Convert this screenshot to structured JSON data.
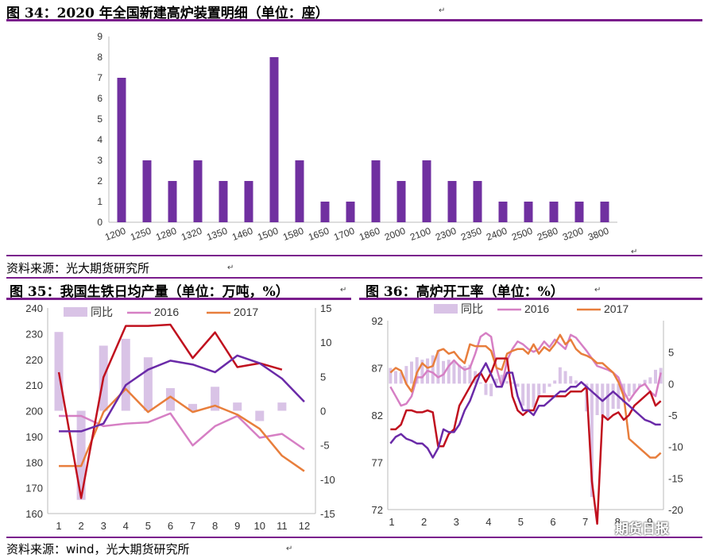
{
  "chart34": {
    "title": "图 34：2020 年全国新建高炉装置明细（单位：座）",
    "source": "资料来源：光大期货研究所"
  },
  "chart35": {
    "title": "图 35：我国生铁日均产量（单位：万吨，%）"
  },
  "chart36": {
    "title": "图 36：高炉开工率（单位：%）"
  },
  "bottom_source": "资料来源：wind，光大期货研究所",
  "watermark": "期货日报",
  "colors": {
    "purple_bar": "#7030a0",
    "rule": "#7a1d8c",
    "yoy_bar": "#d9c3e6",
    "pink": "#d67fc4",
    "orange": "#e87e3c",
    "red": "#c0101e",
    "violet": "#6a2aa8"
  },
  "chart_data": [
    {
      "type": "bar",
      "categories": [
        "1200",
        "1250",
        "1280",
        "1320",
        "1350",
        "1460",
        "1500",
        "1580",
        "1650",
        "1700",
        "1860",
        "2000",
        "2100",
        "2300",
        "2350",
        "2400",
        "2500",
        "2580",
        "3200",
        "3800"
      ],
      "values": [
        7,
        3,
        2,
        3,
        2,
        2,
        8,
        3,
        1,
        1,
        3,
        2,
        3,
        2,
        2,
        1,
        1,
        1,
        1,
        1
      ],
      "ylim": [
        0,
        9
      ],
      "yticks": [
        0,
        1,
        2,
        3,
        4,
        5,
        6,
        7,
        8,
        9
      ],
      "grid": false
    },
    {
      "type": "line",
      "x": [
        1,
        2,
        3,
        4,
        5,
        6,
        7,
        8,
        9,
        10,
        11,
        12
      ],
      "ylim_left": [
        160,
        240
      ],
      "yticks_left": [
        160,
        170,
        180,
        190,
        200,
        210,
        220,
        230,
        240
      ],
      "ylim_right": [
        -15,
        15
      ],
      "yticks_right": [
        -15,
        -10,
        -5,
        0,
        5,
        10,
        15
      ],
      "legend": [
        "同比",
        "2016",
        "2017"
      ],
      "yoy": {
        "name": "同比",
        "axis": "right",
        "values": [
          11.5,
          -13,
          9.5,
          10.5,
          7.8,
          3.3,
          1,
          3.5,
          1.2,
          -1.5,
          1.2,
          null
        ]
      },
      "series": [
        {
          "name": "2016",
          "axis": "left",
          "values": [
            198,
            198,
            194,
            195,
            195.5,
            199,
            186.5,
            194,
            198,
            189.5,
            191,
            185
          ]
        },
        {
          "name": "2017",
          "axis": "left",
          "values": [
            178.5,
            178.5,
            199.5,
            208.5,
            199.5,
            205.5,
            199.5,
            202,
            198.5,
            193,
            182.5,
            176.5
          ]
        },
        {
          "axis": "left",
          "color": "red",
          "values": [
            215,
            166,
            213,
            233,
            233,
            233.5,
            220.5,
            230.5,
            217,
            218.5,
            216,
            null
          ]
        },
        {
          "axis": "left",
          "color": "violet",
          "values": [
            192,
            192,
            195,
            210,
            216,
            219.5,
            218,
            215,
            221.5,
            218.5,
            212.5,
            203.5
          ]
        }
      ]
    },
    {
      "type": "line",
      "xticks": [
        1,
        2,
        3,
        4,
        5,
        6,
        7,
        8,
        9
      ],
      "n_weeks": 52,
      "ylim_left": [
        72,
        92
      ],
      "yticks_left": [
        72,
        77,
        82,
        87,
        92
      ],
      "ylim_right": [
        -20,
        10
      ],
      "yticks_right": [
        -20,
        -15,
        -10,
        -5,
        0,
        5
      ],
      "legend": [
        "同比",
        "2016",
        "2017"
      ],
      "yoy": {
        "name": "同比",
        "axis": "right",
        "values": [
          2.5,
          2,
          1.8,
          2.8,
          3.5,
          4.2,
          3.8,
          4,
          4.5,
          5.3,
          3.6,
          3.8,
          3.5,
          3,
          2.8,
          3,
          2,
          0.2,
          -1.8,
          -2,
          0.8,
          1.4,
          0.4,
          0.2,
          -0.5,
          -3.5,
          -4.5,
          -3.8,
          -2.2,
          -1.5,
          -0.5,
          0.5,
          2.6,
          2,
          1.2,
          0.5,
          0,
          -4.4,
          -18,
          -5,
          -5.5,
          -5.7,
          -4,
          -4,
          -3,
          -2,
          -1.5,
          -0.5,
          0.6,
          1,
          2.2,
          2.5
        ]
      },
      "series": [
        {
          "name": "2016",
          "axis": "left",
          "values": [
            85,
            84,
            83,
            83.2,
            84,
            86,
            86,
            86.7,
            86.5,
            86,
            86.3,
            87.2,
            87.8,
            87.2,
            86.8,
            87,
            88.5,
            90.3,
            90.7,
            90.3,
            87,
            85,
            87.8,
            89,
            89.8,
            89.5,
            89,
            88.7,
            89,
            89.8,
            89.2,
            90,
            89.5,
            89,
            90.5,
            90.2,
            89.5,
            88.8,
            88,
            87.2,
            87,
            86.8,
            86.5,
            86,
            84.5,
            83.5,
            84.3,
            85,
            85.3,
            84.5,
            84,
            86.5
          ]
        },
        {
          "name": "2017",
          "axis": "left",
          "values": [
            86.5,
            87,
            86.7,
            85.3,
            84.5,
            86.5,
            87.5,
            87,
            87.2,
            88.8,
            89,
            88.5,
            88.7,
            88,
            87.5,
            89.5,
            89.3,
            89.3,
            89.3,
            88.8,
            87,
            86.8,
            88.5,
            88.8,
            89,
            89,
            88.5,
            89.5,
            88.5,
            89.2,
            88.8,
            89.5,
            90.5,
            89.5,
            90,
            89,
            88.5,
            88.3,
            88,
            87.5,
            87.5,
            87,
            86.5,
            85.5,
            84,
            79.5,
            79,
            78.5,
            78,
            77.5,
            77.5,
            78
          ]
        },
        {
          "axis": "left",
          "color": "red",
          "values": [
            80.5,
            80.5,
            81,
            82.5,
            82.5,
            82.3,
            82.3,
            82.5,
            82.3,
            78.7,
            78.7,
            80,
            80.5,
            83,
            84,
            85,
            86,
            86.5,
            85.5,
            86.5,
            88,
            88,
            88,
            84,
            82.5,
            82,
            82.5,
            82.5,
            84,
            84,
            84,
            84,
            84,
            84,
            84.5,
            84.5,
            84.5,
            85,
            75,
            70.5,
            82,
            81.5,
            82,
            82.3,
            81.5,
            82,
            83,
            83.5,
            84,
            84.5,
            83,
            83.5
          ]
        },
        {
          "axis": "left",
          "color": "violet",
          "values": [
            79,
            79.7,
            80,
            79.5,
            79.3,
            79,
            79,
            78.5,
            77.5,
            78.5,
            80.5,
            80.2,
            80.2,
            81,
            82.5,
            83.5,
            85,
            86.5,
            87.5,
            86.3,
            85,
            85,
            86.5,
            86.5,
            84,
            82.5,
            82.5,
            82,
            83,
            83,
            83.5,
            84,
            84.5,
            84.5,
            85,
            85,
            85.5,
            85,
            84.5,
            84,
            83.5,
            84,
            84.5,
            84,
            83.5,
            83,
            82.5,
            82,
            81.5,
            81.3,
            81,
            81
          ]
        }
      ]
    }
  ]
}
